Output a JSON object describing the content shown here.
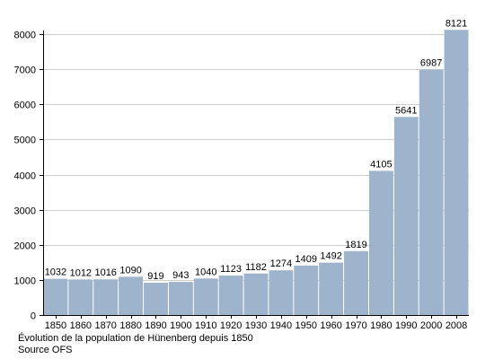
{
  "chart_data": {
    "type": "bar",
    "categories": [
      "1850",
      "1860",
      "1870",
      "1880",
      "1890",
      "1900",
      "1910",
      "1920",
      "1930",
      "1940",
      "1950",
      "1960",
      "1970",
      "1980",
      "1990",
      "2000",
      "2008"
    ],
    "values": [
      1032,
      1012,
      1016,
      1090,
      919,
      943,
      1040,
      1123,
      1182,
      1274,
      1409,
      1492,
      1819,
      4105,
      5641,
      6987,
      8121
    ],
    "ylim": [
      0,
      8000
    ],
    "yticks": [
      0,
      1000,
      2000,
      3000,
      4000,
      5000,
      6000,
      7000,
      8000
    ],
    "grid": true,
    "legend": "none",
    "bar_color": "#9db4cc",
    "grid_color": "#cccccc",
    "title": "",
    "xlabel": "",
    "ylabel": ""
  },
  "caption": {
    "line1": "Évolution de la population de Hünenberg depuis 1850",
    "line2": "Source OFS"
  }
}
